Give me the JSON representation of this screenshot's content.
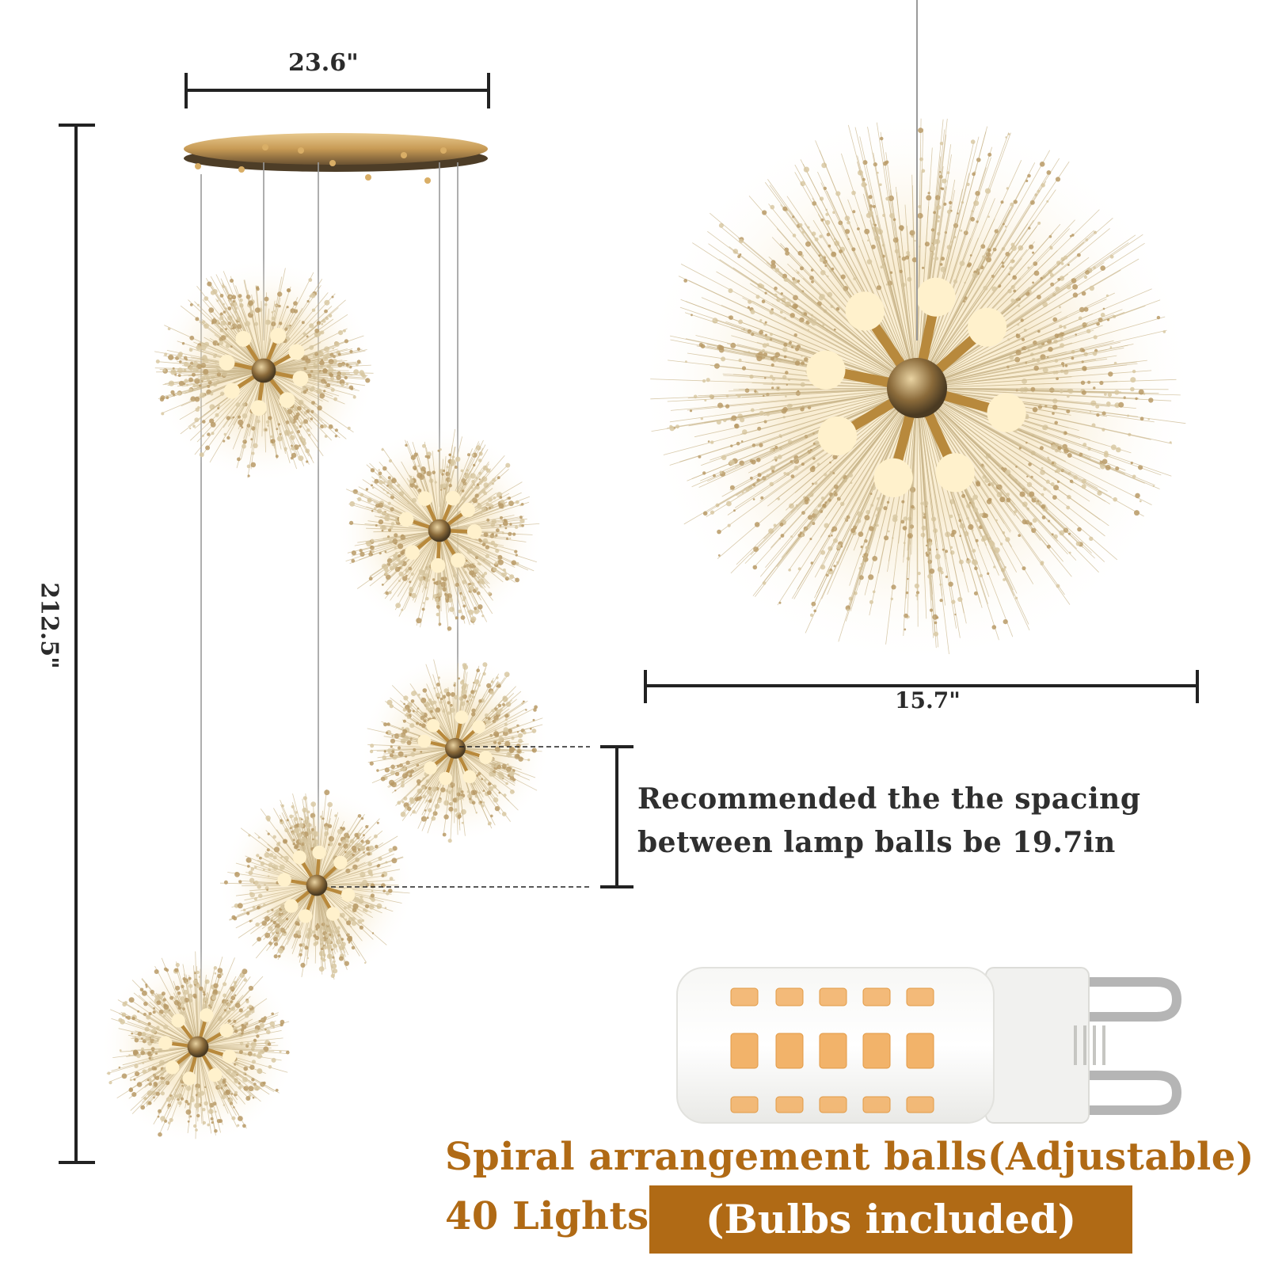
{
  "dimensions": {
    "cluster_width": "23.6\"",
    "overall_height": "212.5\"",
    "single_ball_width": "15.7\""
  },
  "spacing_note": {
    "line1": "Recommended the the spacing",
    "line2": "between lamp balls be 19.7in"
  },
  "features": {
    "line1": "Spiral arrangement balls(Adjustable)",
    "line2": "40 Lights",
    "bulbs_badge": "(Bulbs included)"
  },
  "colors": {
    "accent": "#b06a15",
    "text_dark": "#2b2b2b",
    "gold": "#c9a04a",
    "led_orange": "#f2b36a"
  },
  "icons": [
    "sputnik-chandelier-icon",
    "ceiling-canopy-icon",
    "g9-led-bulb-icon"
  ]
}
